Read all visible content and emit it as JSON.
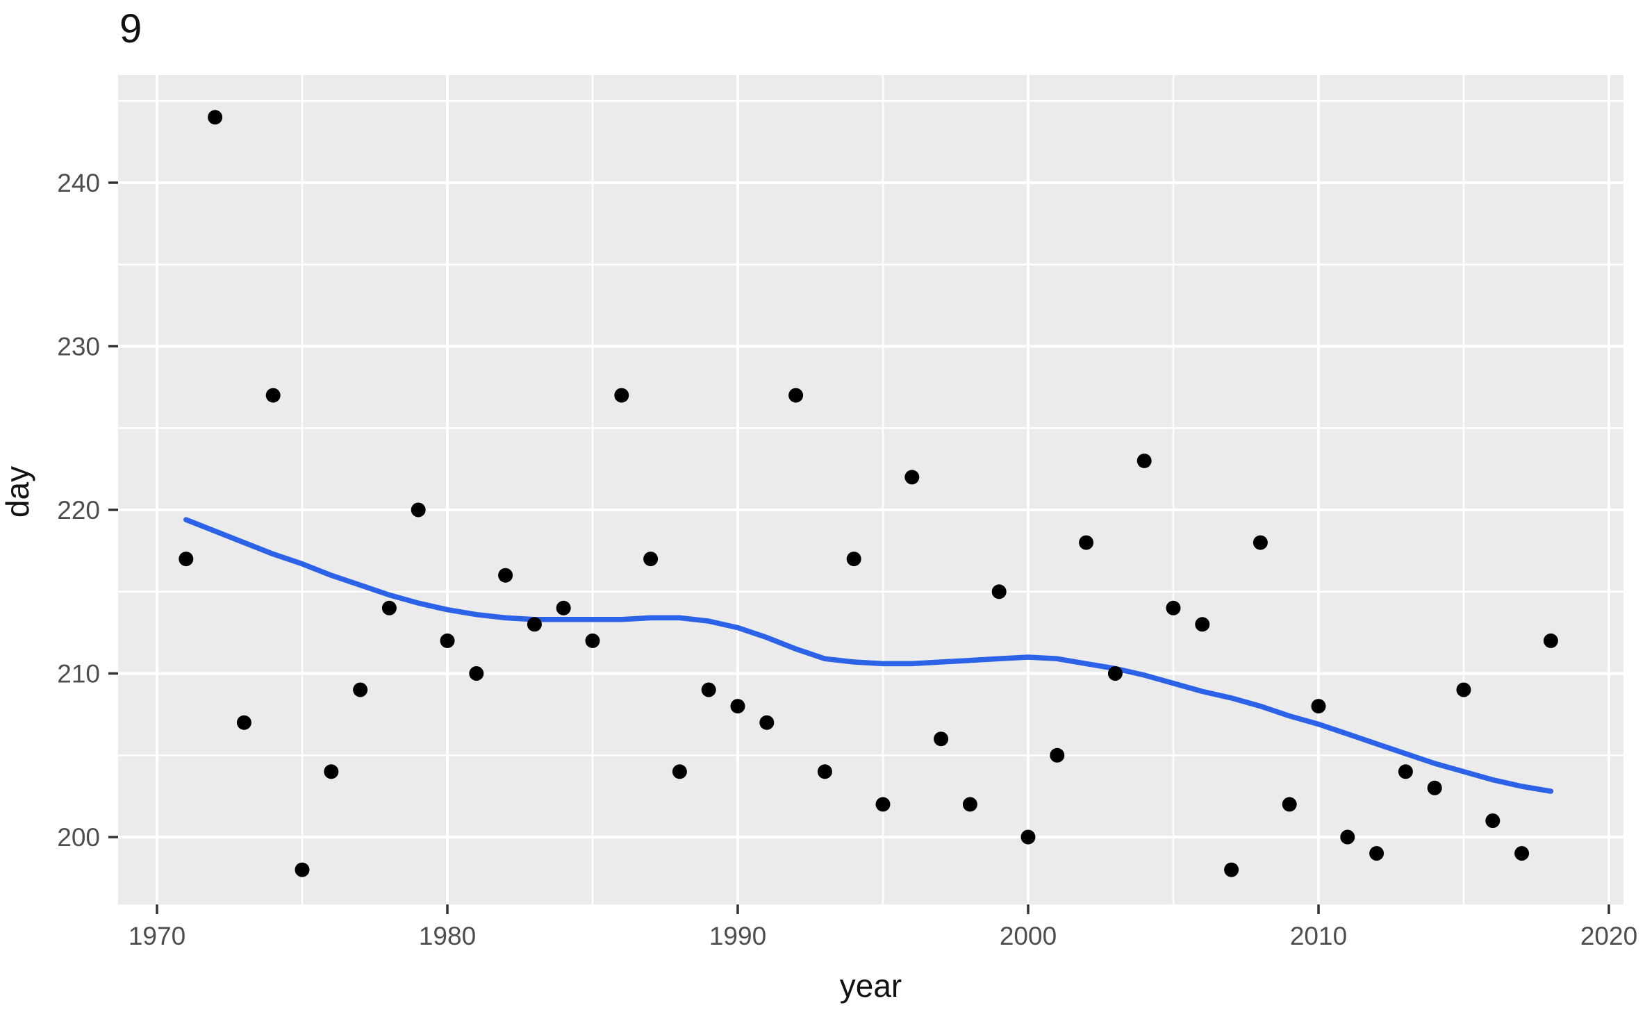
{
  "title": "9",
  "axes": {
    "x_label": "year",
    "y_label": "day"
  },
  "chart_data": {
    "type": "scatter",
    "title": "9",
    "xlabel": "year",
    "ylabel": "day",
    "xlim": [
      1968.7,
      2020.5
    ],
    "ylim": [
      195.9,
      246.6
    ],
    "x_ticks": [
      1970,
      1980,
      1990,
      2000,
      2010,
      2020
    ],
    "x_minor_ticks": [
      1975,
      1985,
      1995,
      2005,
      2015
    ],
    "y_ticks": [
      200,
      210,
      220,
      230,
      240
    ],
    "y_minor_ticks": [
      205,
      215,
      225,
      235,
      245
    ],
    "grid": true,
    "legend": false,
    "panel_background": "#EBEBEB",
    "grid_color": "#FFFFFF",
    "tick_color": "#333333",
    "tick_label_color": "#4d4d4d",
    "point_color": "#000000",
    "smooth_color": "#2b62e8",
    "points": [
      {
        "year": 1971,
        "day": 217
      },
      {
        "year": 1972,
        "day": 244
      },
      {
        "year": 1973,
        "day": 207
      },
      {
        "year": 1974,
        "day": 227
      },
      {
        "year": 1975,
        "day": 198
      },
      {
        "year": 1976,
        "day": 204
      },
      {
        "year": 1977,
        "day": 209
      },
      {
        "year": 1978,
        "day": 214
      },
      {
        "year": 1979,
        "day": 220
      },
      {
        "year": 1980,
        "day": 212
      },
      {
        "year": 1981,
        "day": 210
      },
      {
        "year": 1982,
        "day": 216
      },
      {
        "year": 1983,
        "day": 213
      },
      {
        "year": 1984,
        "day": 214
      },
      {
        "year": 1985,
        "day": 212
      },
      {
        "year": 1986,
        "day": 227
      },
      {
        "year": 1987,
        "day": 217
      },
      {
        "year": 1988,
        "day": 204
      },
      {
        "year": 1989,
        "day": 209
      },
      {
        "year": 1990,
        "day": 208
      },
      {
        "year": 1991,
        "day": 207
      },
      {
        "year": 1992,
        "day": 227
      },
      {
        "year": 1993,
        "day": 204
      },
      {
        "year": 1994,
        "day": 217
      },
      {
        "year": 1995,
        "day": 202
      },
      {
        "year": 1996,
        "day": 222
      },
      {
        "year": 1997,
        "day": 206
      },
      {
        "year": 1998,
        "day": 202
      },
      {
        "year": 1999,
        "day": 215
      },
      {
        "year": 2000,
        "day": 200
      },
      {
        "year": 2001,
        "day": 205
      },
      {
        "year": 2002,
        "day": 218
      },
      {
        "year": 2003,
        "day": 210
      },
      {
        "year": 2004,
        "day": 223
      },
      {
        "year": 2005,
        "day": 214
      },
      {
        "year": 2006,
        "day": 213
      },
      {
        "year": 2007,
        "day": 198
      },
      {
        "year": 2008,
        "day": 218
      },
      {
        "year": 2009,
        "day": 202
      },
      {
        "year": 2010,
        "day": 208
      },
      {
        "year": 2011,
        "day": 200
      },
      {
        "year": 2012,
        "day": 199
      },
      {
        "year": 2013,
        "day": 204
      },
      {
        "year": 2014,
        "day": 203
      },
      {
        "year": 2015,
        "day": 209
      },
      {
        "year": 2016,
        "day": 201
      },
      {
        "year": 2017,
        "day": 199
      },
      {
        "year": 2018,
        "day": 212
      }
    ],
    "smooth_line": {
      "name": "loess-smooth",
      "x": [
        1971,
        1972,
        1973,
        1974,
        1975,
        1976,
        1977,
        1978,
        1979,
        1980,
        1981,
        1982,
        1983,
        1984,
        1985,
        1986,
        1987,
        1988,
        1989,
        1990,
        1991,
        1992,
        1993,
        1994,
        1995,
        1996,
        1997,
        1998,
        1999,
        2000,
        2001,
        2002,
        2003,
        2004,
        2005,
        2006,
        2007,
        2008,
        2009,
        2010,
        2011,
        2012,
        2013,
        2014,
        2015,
        2016,
        2017,
        2018
      ],
      "y": [
        219.4,
        218.7,
        218.0,
        217.3,
        216.7,
        216.0,
        215.4,
        214.8,
        214.3,
        213.9,
        213.6,
        213.4,
        213.3,
        213.3,
        213.3,
        213.3,
        213.4,
        213.4,
        213.2,
        212.8,
        212.2,
        211.5,
        210.9,
        210.7,
        210.6,
        210.6,
        210.7,
        210.8,
        210.9,
        211.0,
        210.9,
        210.6,
        210.3,
        209.9,
        209.4,
        208.9,
        208.5,
        208.0,
        207.4,
        206.9,
        206.3,
        205.7,
        205.1,
        204.5,
        204.0,
        203.5,
        203.1,
        202.8
      ]
    }
  }
}
